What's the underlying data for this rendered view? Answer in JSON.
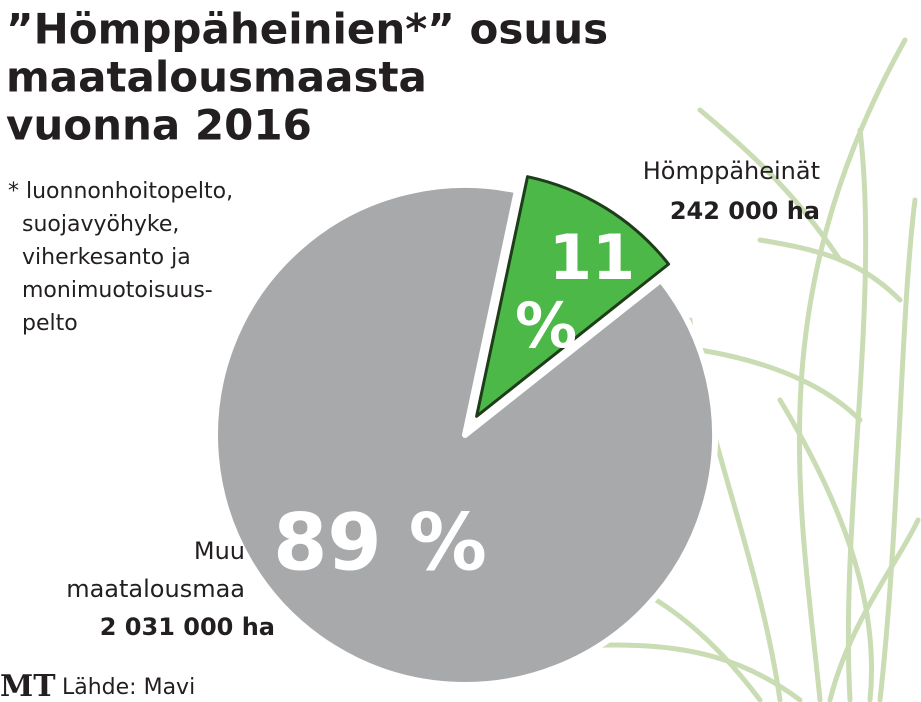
{
  "chart_data": {
    "type": "pie",
    "title_lines": [
      "”Hömppäheinien*” osuus",
      "maatalousmaasta",
      "vuonna 2016"
    ],
    "footnote_lines": [
      "* luonnonhoitopelto,",
      "suojavyöhyke,",
      "viherkesanto ja",
      "monimuotoisuus-",
      "pelto"
    ],
    "categories": [
      "Hömppäheinät",
      "Muu maatalousmaa"
    ],
    "category_details": [
      "242 000 ha",
      "2 031 000 ha"
    ],
    "values": [
      11,
      89
    ],
    "value_labels": [
      "11 %",
      "89 %"
    ],
    "colors": [
      "#4cb848",
      "#a8a9ab"
    ],
    "logo": "MT",
    "source": "Lähde: Mavi"
  }
}
